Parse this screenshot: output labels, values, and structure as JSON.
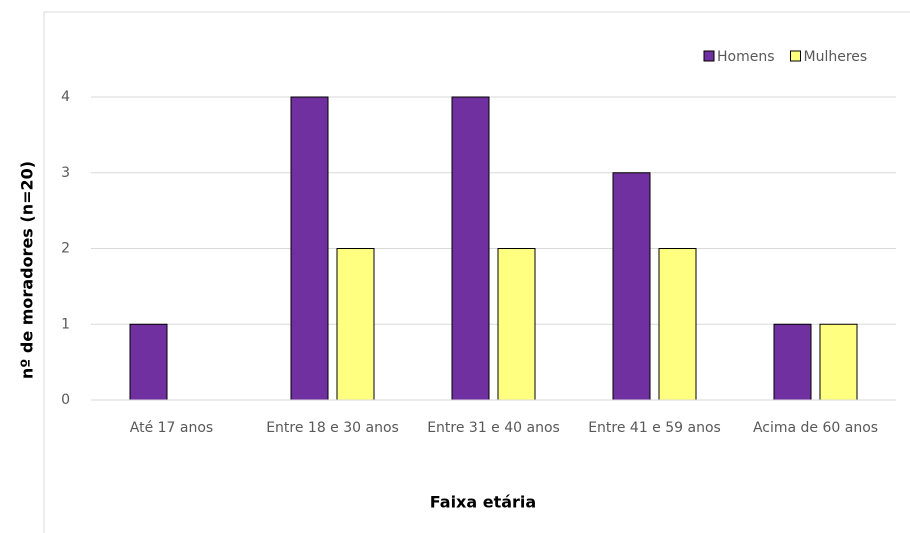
{
  "chart_data": {
    "type": "bar",
    "categories": [
      "Até 17 anos",
      "Entre 18 e 30 anos",
      "Entre 31 e 40 anos",
      "Entre 41 e 59 anos",
      "Acima de 60 anos"
    ],
    "series": [
      {
        "name": "Homens",
        "color": "#7030a0",
        "values": [
          1,
          4,
          4,
          3,
          1
        ]
      },
      {
        "name": "Mulheres",
        "color": "#ffff80",
        "values": [
          0,
          2,
          2,
          2,
          1
        ]
      }
    ],
    "xlabel": "Faixa etária",
    "ylabel": "nº de moradores (n=20)",
    "ylim": [
      0,
      4
    ],
    "yticks": [
      0,
      1,
      2,
      3,
      4
    ],
    "grid": true,
    "legend": "top-right"
  }
}
